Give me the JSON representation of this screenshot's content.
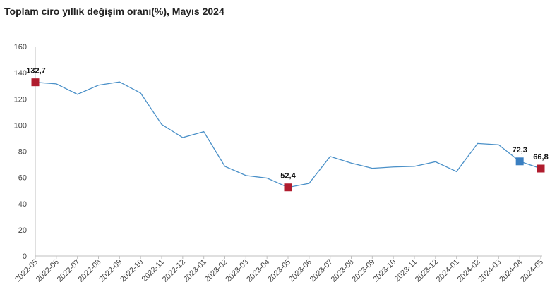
{
  "chart_data": {
    "type": "line",
    "title": "Toplam ciro yıllık değişim oranı(%), Mayıs 2024",
    "xlabel": "",
    "ylabel": "",
    "ylim": [
      0,
      160
    ],
    "yticks": [
      0,
      20,
      40,
      60,
      80,
      100,
      120,
      140,
      160
    ],
    "grid": false,
    "categories": [
      "2022-05",
      "2022-06",
      "2022-07",
      "2022-08",
      "2022-09",
      "2022-10",
      "2022-11",
      "2022-12",
      "2023-01",
      "2023-02",
      "2023-03",
      "2023-04",
      "2023-05",
      "2023-06",
      "2023-07",
      "2023-08",
      "2023-09",
      "2023-10",
      "2023-11",
      "2023-12",
      "2024-01",
      "2024-02",
      "2024-03",
      "2024-04",
      "2024-05"
    ],
    "series": [
      {
        "name": "Toplam ciro yıllık değişim oranı",
        "color": "#4a90c8",
        "values": [
          132.7,
          131.5,
          123.5,
          130.5,
          133.0,
          124.5,
          100.5,
          90.5,
          95.0,
          68.5,
          61.5,
          59.5,
          52.4,
          55.5,
          76.0,
          71.0,
          67.0,
          68.0,
          68.5,
          72.0,
          64.5,
          86.0,
          85.0,
          72.3,
          66.8
        ]
      }
    ],
    "markers": [
      {
        "index": 0,
        "label": "132,7",
        "color": "#b01c2e"
      },
      {
        "index": 12,
        "label": "52,4",
        "color": "#b01c2e"
      },
      {
        "index": 23,
        "label": "72,3",
        "color": "#3a7fc1"
      },
      {
        "index": 24,
        "label": "66,8",
        "color": "#b01c2e"
      }
    ]
  }
}
